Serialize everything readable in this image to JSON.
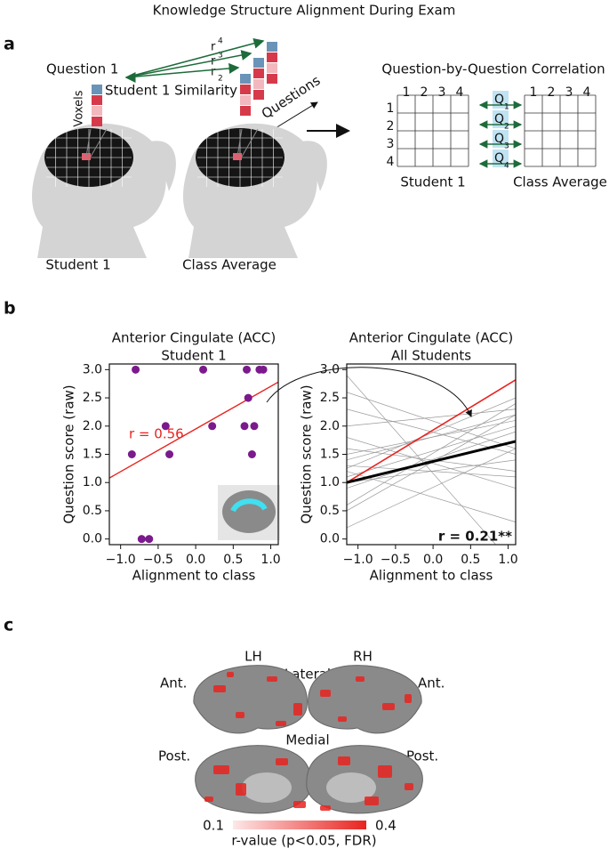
{
  "title": "Knowledge Structure Alignment During Exam",
  "panel_a": {
    "label": "a",
    "question": "Question 1",
    "voxels": "Voxels",
    "similarity": "Student 1 Similarity",
    "r_labels": [
      {
        "base": "r",
        "index": "4"
      },
      {
        "base": "r",
        "index": "3"
      },
      {
        "base": "r",
        "index": "2"
      }
    ],
    "questions": "Questions",
    "heads": [
      "Student 1",
      "Class Average"
    ],
    "matrix_title": "Question-by-Question Correlation",
    "columns": [
      "1",
      "2",
      "3",
      "4"
    ],
    "rows": [
      "1",
      "2",
      "3",
      "4"
    ],
    "q_labels": [
      {
        "base": "Q",
        "index": "1"
      },
      {
        "base": "Q",
        "index": "2"
      },
      {
        "base": "Q",
        "index": "3"
      },
      {
        "base": "Q",
        "index": "4"
      }
    ],
    "matrix_labels": [
      "Student 1",
      "Class Average"
    ]
  },
  "panel_b_label": "b",
  "chart_data": [
    {
      "type": "scatter",
      "title": "Anterior Cingulate (ACC)",
      "subtitle": "Student 1",
      "x_label": "Alignment to class",
      "y_label": "Question score (raw)",
      "x": [
        -0.8,
        0.1,
        0.68,
        0.85,
        0.9,
        0.7,
        -0.4,
        0.22,
        0.65,
        0.78,
        -0.85,
        -0.35,
        0.75,
        -0.72,
        -0.62
      ],
      "y": [
        3.0,
        3.0,
        3.0,
        3.0,
        3.0,
        2.5,
        2.0,
        2.0,
        2.0,
        2.0,
        1.5,
        1.5,
        1.5,
        0.0,
        0.0
      ],
      "color": "#7b1a8c",
      "fit": {
        "x": [
          -1.15,
          1.1
        ],
        "y": [
          1.08,
          2.78
        ],
        "color": "#e8231f"
      },
      "annotation": "r = 0.56",
      "annotation_color": "#e8231f",
      "xlim": [
        -1.15,
        1.1
      ],
      "ylim": [
        -0.1,
        3.1
      ],
      "xticks": [
        {
          "value": -1,
          "label": "−1.0"
        },
        {
          "value": -0.5,
          "label": "−0.5"
        },
        {
          "value": 0,
          "label": "0.0"
        },
        0.5,
        {
          "value": 1,
          "label": "1.0"
        }
      ],
      "yticks": [
        {
          "value": 0,
          "label": "0.0"
        },
        0.5,
        {
          "value": 1,
          "label": "1.0"
        },
        1.5,
        {
          "value": 2,
          "label": "2.0"
        },
        2.5,
        {
          "value": 3,
          "label": "3.0"
        }
      ]
    },
    {
      "type": "line",
      "title": "Anterior Cingulate (ACC)",
      "subtitle": "All Students",
      "x_label": "Alignment to class",
      "y_label": "Question score (raw)",
      "x": [
        -1.15,
        1.1
      ],
      "series": [
        {
          "color": "#999999",
          "linewidth": 0.7,
          "values": [
            1.25,
            2.5
          ]
        },
        {
          "color": "#999999",
          "linewidth": 0.7,
          "values": [
            1.4,
            2.2
          ]
        },
        {
          "color": "#999999",
          "linewidth": 0.7,
          "values": [
            2.3,
            1.5
          ]
        },
        {
          "color": "#999999",
          "linewidth": 0.7,
          "values": [
            1.1,
            2.0
          ]
        },
        {
          "color": "#999999",
          "linewidth": 0.7,
          "values": [
            2.0,
            2.3
          ]
        },
        {
          "color": "#999999",
          "linewidth": 0.7,
          "values": [
            0.5,
            2.2
          ]
        },
        {
          "color": "#999999",
          "linewidth": 0.7,
          "values": [
            1.3,
            1.1
          ]
        },
        {
          "color": "#999999",
          "linewidth": 0.7,
          "values": [
            2.6,
            1.6
          ]
        },
        {
          "color": "#999999",
          "linewidth": 0.7,
          "values": [
            1.2,
            0.3
          ]
        },
        {
          "color": "#999999",
          "linewidth": 0.7,
          "values": [
            0.9,
            1.9
          ]
        },
        {
          "color": "#999999",
          "linewidth": 0.7,
          "values": [
            1.5,
            2.1
          ]
        },
        {
          "color": "#999999",
          "linewidth": 0.7,
          "values": [
            0.2,
            1.6
          ]
        },
        {
          "color": "#999999",
          "linewidth": 0.7,
          "values": [
            1.8,
            0.9
          ]
        },
        {
          "color": "#999999",
          "linewidth": 0.7,
          "values": [
            0.6,
            2.4
          ]
        },
        {
          "color": "#999999",
          "linewidth": 0.7,
          "values": [
            1.0,
            1.4
          ]
        },
        {
          "color": "#999999",
          "linewidth": 0.7,
          "values": [
            2.9,
            -0.5
          ]
        },
        {
          "color": "#999999",
          "linewidth": 0.7,
          "values": [
            1.6,
            1.2
          ]
        },
        {
          "color": "#e8231f",
          "linewidth": 1.6,
          "values": [
            1.0,
            2.82
          ]
        },
        {
          "color": "#000000",
          "linewidth": 3,
          "values": [
            1.0,
            1.73
          ]
        }
      ],
      "annotation": "r = 0.21**",
      "xlim": [
        -1.15,
        1.1
      ],
      "ylim": [
        -0.1,
        3.1
      ],
      "xticks": [
        {
          "value": -1,
          "label": "−1.0"
        },
        {
          "value": -0.5,
          "label": "−0.5"
        },
        {
          "value": 0,
          "label": "0.0"
        },
        0.5,
        {
          "value": 1,
          "label": "1.0"
        }
      ],
      "yticks": [
        {
          "value": 0,
          "label": "0.0"
        },
        0.5,
        {
          "value": 1,
          "label": "1.0"
        },
        1.5,
        {
          "value": 2,
          "label": "2.0"
        },
        2.5,
        {
          "value": 3,
          "label": "3.0"
        }
      ]
    }
  ],
  "panel_c": {
    "label": "c",
    "lh": "LH",
    "rh": "RH",
    "lateral": "Lateral",
    "medial": "Medial",
    "ant": [
      "Ant.",
      "Ant."
    ],
    "post": [
      "Post.",
      "Post."
    ],
    "colorbar": {
      "lim": [
        0.1,
        0.4
      ],
      "ticks": [
        0.1,
        0.4
      ],
      "colors": [
        "#fde8e8",
        "#e8231f"
      ],
      "label": "r-value (p<0.05, FDR)"
    }
  }
}
